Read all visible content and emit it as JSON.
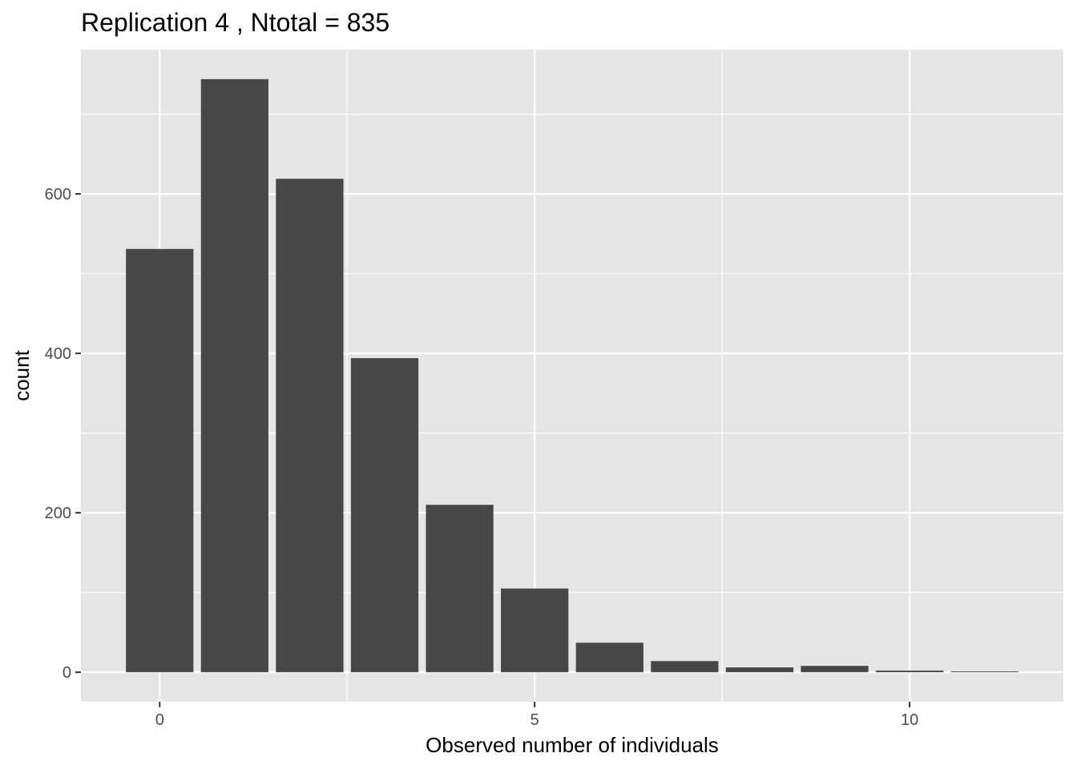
{
  "chart_data": {
    "type": "bar",
    "title": "Replication 4 , Ntotal =  835",
    "xlabel": "Observed number of individuals",
    "ylabel": "count",
    "x": [
      0,
      1,
      2,
      3,
      4,
      5,
      6,
      7,
      8,
      9,
      10,
      11
    ],
    "values": [
      531,
      744,
      619,
      394,
      210,
      105,
      37,
      14,
      6,
      8,
      2,
      1
    ],
    "xlim": [
      -1.05,
      12.05
    ],
    "ylim": [
      -37,
      781
    ],
    "x_ticks": [
      0,
      5,
      10
    ],
    "x_tick_labels": [
      "0",
      "5",
      "10"
    ],
    "y_ticks": [
      0,
      200,
      400,
      600
    ],
    "y_tick_labels": [
      "0",
      "200",
      "400",
      "600"
    ],
    "x_minor_breaks": [
      2.5,
      7.5,
      12.5
    ],
    "y_minor_breaks": [
      100,
      300,
      500,
      700
    ],
    "grid": true,
    "legend": "none",
    "colors": {
      "bar": "#474747",
      "panel": "#e5e5e5",
      "grid": "#ffffff",
      "tick": "#333333"
    }
  }
}
